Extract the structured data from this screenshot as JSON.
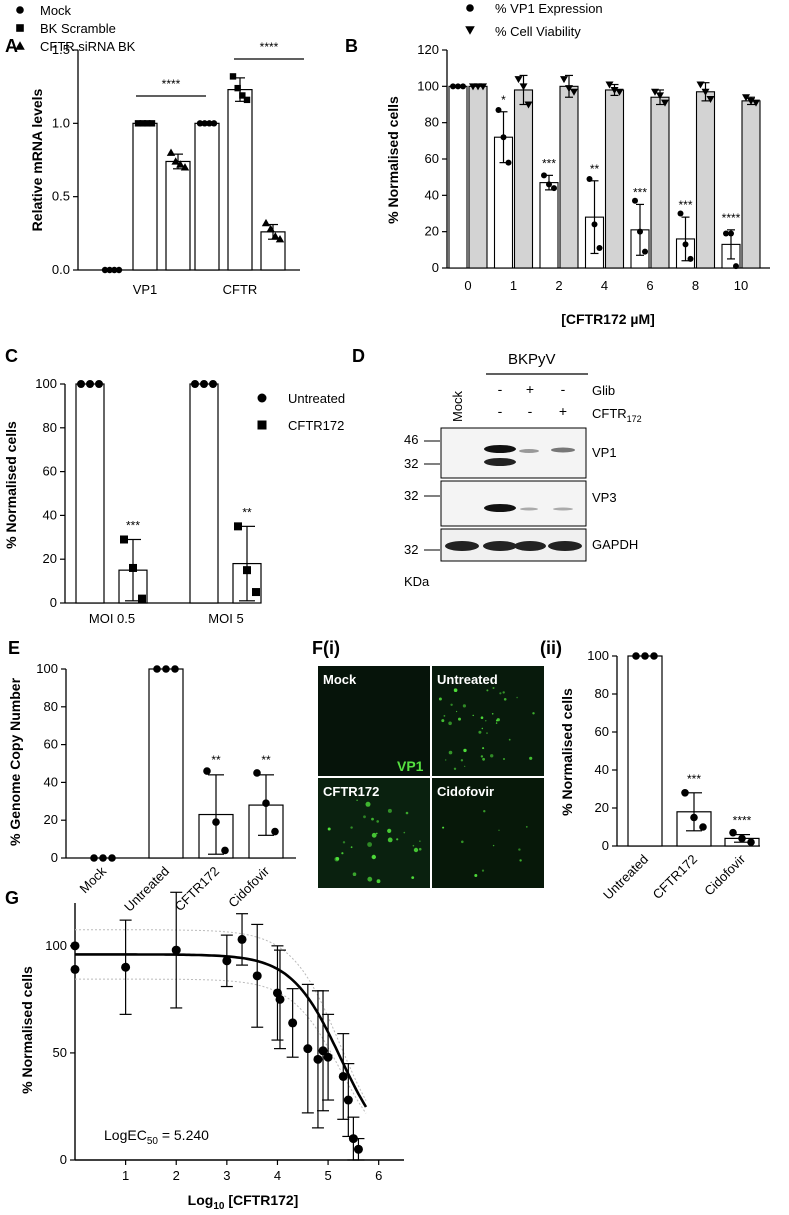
{
  "panel_labels": {
    "A": "A",
    "B": "B",
    "C": "C",
    "D": "D",
    "E": "E",
    "Fi": "F(i)",
    "Fii": "(ii)",
    "G": "G"
  },
  "chart_data": [
    {
      "id": "A",
      "type": "bar",
      "ylabel": "Relative mRNA levels",
      "ylim": [
        0,
        1.5
      ],
      "yticks": [
        "0.0",
        "0.5",
        "1.0",
        "1.5"
      ],
      "categories": [
        "VP1",
        "CFTR"
      ],
      "series": [
        {
          "name": "Mock",
          "marker": "circle",
          "values": [
            0.0,
            1.0
          ],
          "sd": [
            0,
            0
          ],
          "points": [
            [
              0,
              0,
              0,
              0
            ],
            [
              1,
              1,
              1,
              1
            ]
          ]
        },
        {
          "name": "BK Scramble",
          "marker": "square",
          "values": [
            1.0,
            1.23
          ],
          "sd": [
            0,
            0.08
          ],
          "points": [
            [
              1,
              1,
              1,
              1
            ],
            [
              1.32,
              1.24,
              1.19,
              1.16
            ]
          ]
        },
        {
          "name": "CFTR siRNA BK",
          "marker": "triangle",
          "values": [
            0.74,
            0.26
          ],
          "sd": [
            0.05,
            0.05
          ],
          "points": [
            [
              0.8,
              0.74,
              0.72,
              0.7
            ],
            [
              0.32,
              0.28,
              0.23,
              0.21
            ]
          ]
        }
      ],
      "significance": [
        {
          "label": "****",
          "y": 1.2,
          "cat": 0
        },
        {
          "label": "****",
          "y": 1.52,
          "cat": 1
        }
      ]
    },
    {
      "id": "B",
      "type": "bar",
      "xlabel": "[CFTR172 µM]",
      "ylabel": "% Normalised cells",
      "ylim": [
        0,
        120
      ],
      "yticks": [
        "0",
        "20",
        "40",
        "60",
        "80",
        "100",
        "120"
      ],
      "categories": [
        "0",
        "1",
        "2",
        "4",
        "6",
        "8",
        "10"
      ],
      "series": [
        {
          "name": "% VP1 Expression",
          "marker": "circle",
          "fill": "#ffffff",
          "values": [
            100,
            72,
            47,
            28,
            21,
            16,
            13
          ],
          "sd": [
            0,
            14,
            4,
            20,
            14,
            12,
            8
          ],
          "points": [
            [
              100,
              100,
              100
            ],
            [
              87,
              72,
              58
            ],
            [
              51,
              46,
              44
            ],
            [
              49,
              24,
              11
            ],
            [
              37,
              20,
              9
            ],
            [
              30,
              13,
              5
            ],
            [
              19,
              19,
              1
            ]
          ]
        },
        {
          "name": "% Cell Viability",
          "marker": "triangle-down",
          "fill": "#d3d3d3",
          "values": [
            100,
            98,
            100,
            98,
            94,
            97,
            92
          ],
          "sd": [
            0,
            8,
            6,
            3,
            4,
            5,
            2
          ],
          "points": [
            [
              100,
              100,
              100
            ],
            [
              104,
              100,
              90
            ],
            [
              104,
              99,
              97
            ],
            [
              101,
              98,
              97
            ],
            [
              97,
              95,
              91
            ],
            [
              101,
              97,
              93
            ],
            [
              94,
              92,
              91
            ]
          ]
        }
      ],
      "annotations": [
        "",
        "*",
        "***",
        "**",
        "***",
        "***",
        "****"
      ]
    },
    {
      "id": "C",
      "type": "bar",
      "ylabel": "% Normalised cells",
      "ylim": [
        0,
        100
      ],
      "yticks": [
        "0",
        "20",
        "40",
        "60",
        "80",
        "100"
      ],
      "categories": [
        "MOI 0.5",
        "MOI 5"
      ],
      "series": [
        {
          "name": "Untreated",
          "marker": "circle",
          "values": [
            100,
            100
          ],
          "sd": [
            0,
            0
          ],
          "points": [
            [
              100,
              100,
              100
            ],
            [
              100,
              100,
              100
            ]
          ]
        },
        {
          "name": "CFTR172",
          "marker": "square",
          "values": [
            15,
            18
          ],
          "sd": [
            14,
            17
          ],
          "points": [
            [
              29,
              16,
              2
            ],
            [
              35,
              15,
              5
            ]
          ]
        }
      ],
      "annotations": [
        "***",
        "**"
      ]
    },
    {
      "id": "E",
      "type": "bar",
      "ylabel": "% Genome Copy Number",
      "ylim": [
        0,
        100
      ],
      "yticks": [
        "0",
        "20",
        "40",
        "60",
        "80",
        "100"
      ],
      "categories": [
        "Mock",
        "Untreated",
        "CFTR172",
        "Cidofovir"
      ],
      "series": [
        {
          "name": "",
          "marker": "circle",
          "values": [
            0,
            100,
            23,
            28
          ],
          "sd": [
            0,
            0,
            21,
            16
          ],
          "points": [
            [
              0,
              0,
              0
            ],
            [
              100,
              100,
              100
            ],
            [
              46,
              19,
              4
            ],
            [
              45,
              29,
              14
            ]
          ]
        }
      ],
      "annotations": [
        "",
        "",
        "**",
        "**"
      ]
    },
    {
      "id": "Fii",
      "type": "bar",
      "ylabel": "% Normalised cells",
      "ylim": [
        0,
        100
      ],
      "yticks": [
        "0",
        "20",
        "40",
        "60",
        "80",
        "100"
      ],
      "categories": [
        "Untreated",
        "CFTR172",
        "Cidofovir"
      ],
      "series": [
        {
          "name": "",
          "marker": "circle",
          "values": [
            100,
            18,
            4
          ],
          "sd": [
            0,
            10,
            2
          ],
          "points": [
            [
              100,
              100,
              100
            ],
            [
              28,
              15,
              10
            ],
            [
              7,
              4,
              2
            ]
          ]
        }
      ],
      "annotations": [
        "",
        "***",
        "****"
      ]
    },
    {
      "id": "G",
      "type": "scatter",
      "xlabel": "Log10 [CFTR172]",
      "ylabel": "% Normalised cells",
      "xlim": [
        0,
        6.5
      ],
      "ylim": [
        0,
        120
      ],
      "xticks": [
        "1",
        "2",
        "3",
        "4",
        "5",
        "6"
      ],
      "yticks": [
        "0",
        "50",
        "100"
      ],
      "annotation": "LogEC50 = 5.240",
      "points": [
        {
          "x": 0.0,
          "y": 100,
          "err": 0
        },
        {
          "x": 0.0,
          "y": 89,
          "err": 0
        },
        {
          "x": 1.0,
          "y": 90,
          "err": 22
        },
        {
          "x": 2.0,
          "y": 98,
          "err": 27
        },
        {
          "x": 3.0,
          "y": 93,
          "err": 12
        },
        {
          "x": 3.3,
          "y": 103,
          "err": 12
        },
        {
          "x": 3.6,
          "y": 86,
          "err": 24
        },
        {
          "x": 4.0,
          "y": 78,
          "err": 22
        },
        {
          "x": 4.05,
          "y": 75,
          "err": 23
        },
        {
          "x": 4.3,
          "y": 64,
          "err": 16
        },
        {
          "x": 4.6,
          "y": 52,
          "err": 30
        },
        {
          "x": 4.8,
          "y": 47,
          "err": 32
        },
        {
          "x": 4.9,
          "y": 51,
          "err": 28
        },
        {
          "x": 5.0,
          "y": 48,
          "err": 20
        },
        {
          "x": 5.3,
          "y": 39,
          "err": 20
        },
        {
          "x": 5.4,
          "y": 28,
          "err": 17
        },
        {
          "x": 5.5,
          "y": 10,
          "err": 10
        },
        {
          "x": 5.6,
          "y": 5,
          "err": 5
        }
      ],
      "fit": {
        "top": 96,
        "bottom": 0,
        "logEC50": 5.24,
        "hill": -0.9
      }
    }
  ],
  "blot": {
    "title": "BKPyV",
    "lane_mock": "Mock",
    "row_glib": "Glib",
    "row_cftr": "CFTR",
    "row_cftr_sub": "172",
    "glib_signs": [
      "-",
      "-",
      "+",
      "-"
    ],
    "cftr_signs": [
      "-",
      "-",
      "-",
      "+"
    ],
    "bands": [
      "VP1",
      "VP3",
      "GAPDH"
    ],
    "markers": [
      "46",
      "32",
      "32",
      "32"
    ],
    "unit": "KDa"
  },
  "micro": {
    "tiles": [
      "Mock",
      "Untreated",
      "CFTR172",
      "Cidofovir"
    ],
    "stain": "VP1"
  }
}
